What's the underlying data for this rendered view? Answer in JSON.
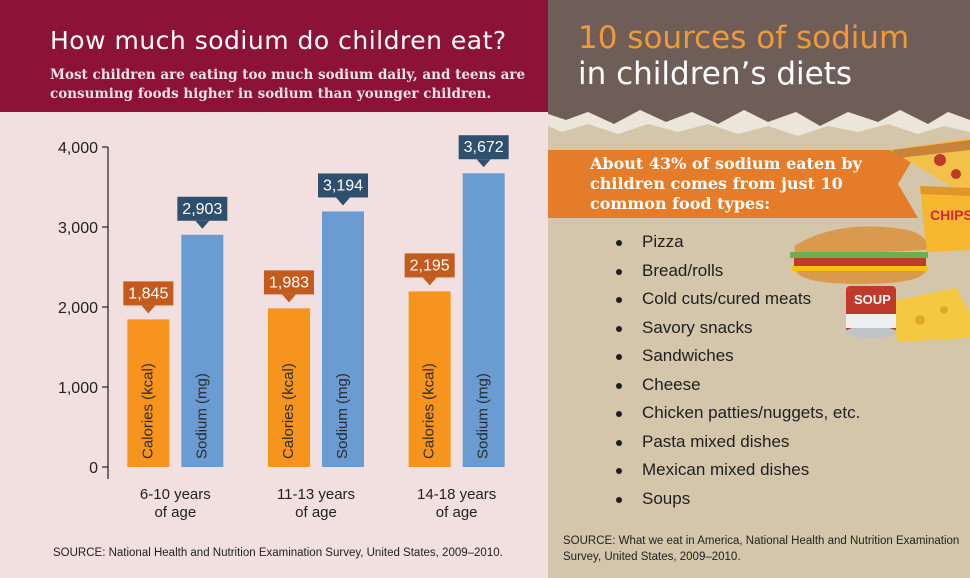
{
  "left_panel": {
    "title": "How much sodium do children eat?",
    "subtitle": "Most children are eating too much sodium daily, and teens are consuming foods higher in sodium than younger children.",
    "source": "SOURCE: National Health and Nutrition Examination Survey, United States, 2009–2010."
  },
  "chart_data": {
    "type": "bar",
    "title": "",
    "xlabel": "",
    "ylabel": "",
    "ylim": [
      0,
      4000
    ],
    "yticks": [
      0,
      1000,
      2000,
      3000,
      4000
    ],
    "ytick_labels": [
      "0",
      "1,000",
      "2,000",
      "3,000",
      "4,000"
    ],
    "categories": [
      [
        "6-10 years",
        "of age"
      ],
      [
        "11-13 years",
        "of age"
      ],
      [
        "14-18 years",
        "of age"
      ]
    ],
    "series": [
      {
        "name": "Calories (kcal)",
        "color": "#f7941e",
        "label_color": "#c25b1d",
        "values": [
          1845,
          1983,
          2195
        ],
        "labels": [
          "1,845",
          "1,983",
          "2,195"
        ]
      },
      {
        "name": "Sodium (mg)",
        "color": "#6a9bd1",
        "label_color": "#2e4f6e",
        "values": [
          2903,
          3194,
          3672
        ],
        "labels": [
          "2,903",
          "3,194",
          "3,672"
        ]
      }
    ],
    "grid": false,
    "legend": "none"
  },
  "right_panel": {
    "title_line1": "10 sources of sodium",
    "title_line2": "in children’s diets",
    "callout": "About 43% of sodium eaten by children comes from just 10 common food types:",
    "sources": [
      "Pizza",
      "Bread/rolls",
      "Cold cuts/cured meats",
      "Savory snacks",
      "Sandwiches",
      "Cheese",
      "Chicken patties/nuggets, etc.",
      "Pasta mixed dishes",
      "Mexican mixed dishes",
      "Soups"
    ],
    "food_labels": {
      "chips": "CHIPS",
      "soup": "SOUP"
    },
    "source": "SOURCE: What we eat in America, National Health and Nutrition Examination Survey, United States, 2009–2010."
  },
  "colors": {
    "header_left": "#8c1238",
    "panel_left": "#f2dfe0",
    "panel_right": "#d4c6ab",
    "header_right": "#6f5e57",
    "accent_orange": "#e57c2a",
    "calories_bar": "#f7941e",
    "sodium_bar": "#6a9bd1"
  }
}
